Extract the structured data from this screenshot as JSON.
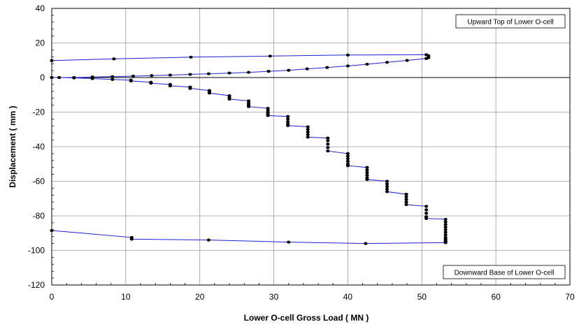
{
  "chart_data": {
    "type": "line",
    "title": "",
    "xlabel": "Lower O-cell Gross Load  ( MN )",
    "ylabel": "Displacement  ( mm )",
    "xlim": [
      0,
      70
    ],
    "ylim": [
      -120,
      40
    ],
    "xticks": [
      0,
      10,
      20,
      30,
      40,
      50,
      60,
      70
    ],
    "yticks": [
      40,
      20,
      0,
      -20,
      -40,
      -60,
      -80,
      -100,
      -120
    ],
    "grid": true,
    "line_color": "#1f1fd0",
    "marker_color": "#000000",
    "annotations": [
      "Upward Top of Lower O-cell",
      "Downward Base of Lower O-cell"
    ],
    "series": [
      {
        "x": [
          0,
          1,
          3,
          5.5,
          8.2,
          11,
          13.5,
          16,
          18.7,
          21.2,
          24,
          26.6,
          29.3,
          32,
          34.5,
          37.2,
          40,
          42.6,
          45.3,
          48,
          50.6,
          50.9,
          50.9,
          50.6,
          40,
          29.5,
          18.8,
          8.4,
          0
        ],
        "y": [
          0,
          0,
          0,
          0.3,
          0.5,
          0.8,
          1.1,
          1.4,
          1.8,
          2.2,
          2.6,
          3,
          3.6,
          4.2,
          5,
          5.8,
          6.7,
          7.7,
          8.8,
          9.9,
          11,
          11.5,
          12.6,
          13.2,
          13,
          12.4,
          11.8,
          10.8,
          9.8
        ]
      },
      {
        "x": [
          0,
          1,
          3,
          5.5,
          8.2,
          10.7,
          10.7,
          13.4,
          13.4,
          16,
          16,
          18.7,
          18.7,
          21.3,
          21.3,
          21.3,
          24,
          24,
          24,
          26.6,
          26.6,
          26.6,
          26.6,
          29.2,
          29.2,
          29.2,
          29.2,
          29.2,
          31.9,
          31.9,
          31.9,
          31.9,
          31.9,
          34.6,
          34.6,
          34.6,
          34.6,
          34.6,
          37.3,
          37.3,
          37.3,
          37.3,
          37.3,
          40,
          40,
          40,
          40,
          40,
          40,
          42.6,
          42.6,
          42.6,
          42.6,
          42.6,
          42.6,
          45.3,
          45.3,
          45.3,
          45.3,
          45.3,
          47.9,
          47.9,
          47.9,
          47.9,
          47.9,
          50.6,
          50.6,
          50.6,
          50.6,
          50.6,
          53.2,
          53.2,
          53.2,
          53.2,
          53.2,
          53.2,
          53.2,
          53.2,
          53.2,
          53.2,
          53.2,
          53.2,
          42.4,
          32,
          21.2,
          10.8,
          10.8,
          0
        ],
        "y": [
          0,
          0,
          -0.2,
          -0.6,
          -1.1,
          -1.5,
          -2,
          -2.7,
          -3.3,
          -4,
          -4.8,
          -5.5,
          -6.3,
          -7.5,
          -8.3,
          -9,
          -10.5,
          -11.5,
          -12.5,
          -13.5,
          -14.8,
          -15.8,
          -16.8,
          -17.8,
          -19,
          -20.2,
          -21.2,
          -22,
          -22.5,
          -24,
          -25.5,
          -26.8,
          -27.8,
          -28.5,
          -30,
          -31.5,
          -33,
          -34.5,
          -35,
          -36.5,
          -38.5,
          -40.5,
          -42.5,
          -44,
          -45.5,
          -47,
          -48.5,
          -50,
          -51,
          -52,
          -53.5,
          -55,
          -56.5,
          -58,
          -59,
          -60,
          -61.5,
          -63,
          -64.5,
          -66,
          -67.5,
          -69,
          -70.5,
          -72,
          -73.5,
          -74.5,
          -76.5,
          -78.5,
          -80.5,
          -81.5,
          -82,
          -83.5,
          -85,
          -86.5,
          -88,
          -89.5,
          -91,
          -92.5,
          -93.5,
          -94.5,
          -95,
          -95.5,
          -96,
          -95.2,
          -94,
          -93.5,
          -92.5,
          -88.5
        ]
      }
    ]
  }
}
